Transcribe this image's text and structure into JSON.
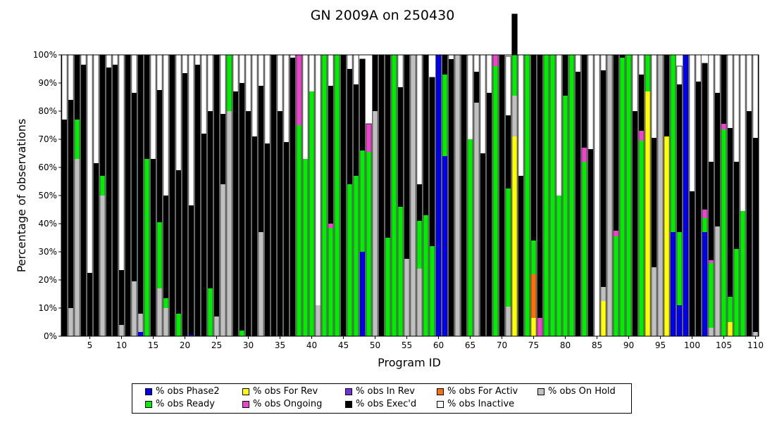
{
  "chart_data": {
    "type": "bar",
    "stacked": true,
    "title": "GN 2009A on 250430",
    "xlabel": "Program ID",
    "ylabel": "Percentage of observations",
    "ylim": [
      0,
      100
    ],
    "y_tick_labels": [
      "0%",
      "10%",
      "20%",
      "30%",
      "40%",
      "50%",
      "60%",
      "70%",
      "80%",
      "90%",
      "100%"
    ],
    "x_tick_labels": [
      "5",
      "10",
      "15",
      "20",
      "25",
      "30",
      "35",
      "40",
      "45",
      "50",
      "55",
      "60",
      "65",
      "70",
      "75",
      "80",
      "85",
      "90",
      "95",
      "100",
      "105",
      "110"
    ],
    "x_ticks": [
      5,
      10,
      15,
      20,
      25,
      30,
      35,
      40,
      45,
      50,
      55,
      60,
      65,
      70,
      75,
      80,
      85,
      90,
      95,
      100,
      105,
      110
    ],
    "series": [
      {
        "name": "% obs Phase2",
        "color": "#0000ee",
        "points": [
          [
            13,
            1.5
          ],
          [
            21,
            0.5
          ],
          [
            48,
            30
          ],
          [
            60,
            100
          ],
          [
            61,
            64
          ],
          [
            97,
            37
          ],
          [
            98,
            11
          ],
          [
            99,
            100
          ],
          [
            102,
            37
          ]
        ]
      },
      {
        "name": "% obs For Rev",
        "color": "#ffff00",
        "points": [
          [
            72,
            71
          ],
          [
            75,
            6.5
          ],
          [
            86,
            12.5
          ],
          [
            93,
            87
          ],
          [
            96,
            71
          ],
          [
            106,
            5
          ]
        ]
      },
      {
        "name": "% obs In Rev",
        "color": "#7030e0",
        "points": []
      },
      {
        "name": "% obs For Activ",
        "color": "#ff7000",
        "points": [
          [
            75,
            15.5
          ]
        ]
      },
      {
        "name": "% obs On Hold",
        "color": "#c0c0c0",
        "points": [
          [
            2,
            10
          ],
          [
            3,
            63
          ],
          [
            7,
            50
          ],
          [
            10,
            4
          ],
          [
            12,
            19.5
          ],
          [
            13,
            6.5
          ],
          [
            16,
            17
          ],
          [
            17,
            10
          ],
          [
            25,
            7
          ],
          [
            26,
            54
          ],
          [
            27,
            80
          ],
          [
            32,
            37
          ],
          [
            41,
            11
          ],
          [
            50,
            80
          ],
          [
            55,
            27.5
          ],
          [
            56,
            100
          ],
          [
            57,
            24
          ],
          [
            63,
            100
          ],
          [
            66,
            83
          ],
          [
            71,
            10.5
          ],
          [
            72,
            14.5
          ],
          [
            86,
            5
          ],
          [
            87,
            100
          ],
          [
            94,
            24.5
          ],
          [
            95,
            100
          ],
          [
            103,
            3
          ],
          [
            104,
            39
          ],
          [
            110,
            1.5
          ]
        ]
      },
      {
        "name": "% obs Ready",
        "color": "#00ee00",
        "points": [
          [
            3,
            14
          ],
          [
            7,
            7
          ],
          [
            14,
            63
          ],
          [
            16,
            23.5
          ],
          [
            17,
            3.5
          ],
          [
            19,
            8
          ],
          [
            24,
            17
          ],
          [
            27,
            20
          ],
          [
            29,
            2
          ],
          [
            38,
            75
          ],
          [
            39,
            63
          ],
          [
            40,
            87
          ],
          [
            42,
            100
          ],
          [
            43,
            38.5
          ],
          [
            44,
            100
          ],
          [
            46,
            54
          ],
          [
            47,
            57
          ],
          [
            48,
            36
          ],
          [
            49,
            65.5
          ],
          [
            52,
            35
          ],
          [
            53,
            100
          ],
          [
            54,
            46
          ],
          [
            57,
            17
          ],
          [
            58,
            43
          ],
          [
            59,
            32
          ],
          [
            61,
            29
          ],
          [
            65,
            70
          ],
          [
            69,
            96
          ],
          [
            71,
            42
          ],
          [
            72,
            14.5
          ],
          [
            74,
            100
          ],
          [
            75,
            12
          ],
          [
            77,
            100
          ],
          [
            78,
            100
          ],
          [
            79,
            50
          ],
          [
            80,
            85.5
          ],
          [
            81,
            100
          ],
          [
            83,
            62
          ],
          [
            88,
            35.5
          ],
          [
            89,
            99
          ],
          [
            90,
            100
          ],
          [
            92,
            69.5
          ],
          [
            93,
            13
          ],
          [
            97,
            63
          ],
          [
            98,
            26
          ],
          [
            102,
            5
          ],
          [
            103,
            23
          ],
          [
            105,
            73.5
          ],
          [
            106,
            9
          ],
          [
            107,
            31
          ],
          [
            108,
            44.5
          ]
        ]
      },
      {
        "name": "% obs Ongoing",
        "color": "#ee44cc",
        "points": [
          [
            38,
            25
          ],
          [
            43,
            1.5
          ],
          [
            49,
            10
          ],
          [
            69,
            4
          ],
          [
            76,
            6.5
          ],
          [
            83,
            5
          ],
          [
            88,
            2
          ],
          [
            92,
            3.5
          ],
          [
            102,
            3
          ],
          [
            103,
            1
          ],
          [
            105,
            2
          ]
        ]
      },
      {
        "name": "% obs Exec'd",
        "color": "#000000",
        "points": [
          [
            1,
            77
          ],
          [
            2,
            74
          ],
          [
            3,
            23
          ],
          [
            4,
            96.5
          ],
          [
            5,
            22.5
          ],
          [
            6,
            61.5
          ],
          [
            7,
            43
          ],
          [
            8,
            95.5
          ],
          [
            9,
            96.5
          ],
          [
            10,
            19.5
          ],
          [
            11,
            100
          ],
          [
            12,
            67
          ],
          [
            13,
            92
          ],
          [
            14,
            37
          ],
          [
            15,
            63
          ],
          [
            16,
            47
          ],
          [
            17,
            36.5
          ],
          [
            18,
            100
          ],
          [
            19,
            51
          ],
          [
            20,
            93.5
          ],
          [
            21,
            46
          ],
          [
            22,
            96.5
          ],
          [
            23,
            72
          ],
          [
            24,
            63
          ],
          [
            25,
            93
          ],
          [
            26,
            25
          ],
          [
            28,
            87
          ],
          [
            29,
            88
          ],
          [
            30,
            80
          ],
          [
            31,
            71
          ],
          [
            32,
            52
          ],
          [
            33,
            68.5
          ],
          [
            34,
            100
          ],
          [
            35,
            80
          ],
          [
            36,
            69
          ],
          [
            37,
            99
          ],
          [
            43,
            49
          ],
          [
            45,
            100
          ],
          [
            46,
            41
          ],
          [
            47,
            32.5
          ],
          [
            48,
            32.5
          ],
          [
            50,
            20
          ],
          [
            51,
            100
          ],
          [
            52,
            65
          ],
          [
            54,
            42.5
          ],
          [
            55,
            72.5
          ],
          [
            57,
            13
          ],
          [
            58,
            57
          ],
          [
            59,
            60
          ],
          [
            60,
            0
          ],
          [
            61,
            7
          ],
          [
            62,
            98.5
          ],
          [
            64,
            100
          ],
          [
            66,
            11
          ],
          [
            67,
            65
          ],
          [
            68,
            86.5
          ],
          [
            69,
            0
          ],
          [
            70,
            100
          ],
          [
            71,
            26
          ],
          [
            72,
            14.5
          ],
          [
            73,
            57
          ],
          [
            75,
            66
          ],
          [
            76,
            93.5
          ],
          [
            79,
            0
          ],
          [
            80,
            14.5
          ],
          [
            82,
            94
          ],
          [
            83,
            33
          ],
          [
            84,
            66.5
          ],
          [
            86,
            77
          ],
          [
            88,
            62.5
          ],
          [
            89,
            1
          ],
          [
            91,
            80
          ],
          [
            92,
            20
          ],
          [
            94,
            46
          ],
          [
            96,
            29
          ],
          [
            97,
            0
          ],
          [
            98,
            52.5
          ],
          [
            100,
            51.5
          ],
          [
            101,
            90.5
          ],
          [
            102,
            52
          ],
          [
            103,
            35
          ],
          [
            104,
            47.5
          ],
          [
            105,
            24.5
          ],
          [
            106,
            60
          ],
          [
            107,
            31
          ],
          [
            109,
            80
          ],
          [
            110,
            69
          ]
        ]
      },
      {
        "name": "% obs Inactive",
        "color": "#ffffff",
        "points": [
          [
            1,
            23
          ],
          [
            2,
            16
          ],
          [
            4,
            3.5
          ],
          [
            5,
            77.5
          ],
          [
            6,
            38.5
          ],
          [
            8,
            4.5
          ],
          [
            9,
            3.5
          ],
          [
            10,
            76.5
          ],
          [
            12,
            13.5
          ],
          [
            15,
            37
          ],
          [
            16,
            12.5
          ],
          [
            17,
            50
          ],
          [
            19,
            41
          ],
          [
            20,
            6.5
          ],
          [
            21,
            53.5
          ],
          [
            22,
            3.5
          ],
          [
            23,
            28
          ],
          [
            24,
            20
          ],
          [
            26,
            21
          ],
          [
            28,
            13
          ],
          [
            29,
            10
          ],
          [
            30,
            20
          ],
          [
            31,
            29
          ],
          [
            32,
            11
          ],
          [
            33,
            31.5
          ],
          [
            35,
            20
          ],
          [
            36,
            31
          ],
          [
            37,
            1
          ],
          [
            39,
            37
          ],
          [
            40,
            13
          ],
          [
            41,
            89
          ],
          [
            43,
            11
          ],
          [
            46,
            5
          ],
          [
            47,
            10.5
          ],
          [
            50,
            0
          ],
          [
            54,
            11.5
          ],
          [
            57,
            46
          ],
          [
            62,
            1.5
          ],
          [
            65,
            30
          ],
          [
            66,
            6
          ],
          [
            67,
            35
          ],
          [
            68,
            13.5
          ],
          [
            71,
            21
          ],
          [
            72,
            0
          ],
          [
            73,
            43
          ],
          [
            75,
            0
          ],
          [
            79,
            50
          ],
          [
            82,
            6
          ],
          [
            84,
            33.5
          ],
          [
            85,
            100
          ],
          [
            86,
            5.5
          ],
          [
            91,
            20
          ],
          [
            92,
            7
          ],
          [
            94,
            29.5
          ],
          [
            98,
            6.5
          ],
          [
            100,
            48.5
          ],
          [
            101,
            9.5
          ],
          [
            102,
            0
          ],
          [
            103,
            38
          ],
          [
            104,
            13.5
          ],
          [
            105,
            0
          ],
          [
            106,
            26
          ],
          [
            107,
            38
          ],
          [
            108,
            55.5
          ],
          [
            109,
            20
          ],
          [
            110,
            29.5
          ]
        ]
      }
    ],
    "grid": false,
    "legend_position": "bottom"
  }
}
